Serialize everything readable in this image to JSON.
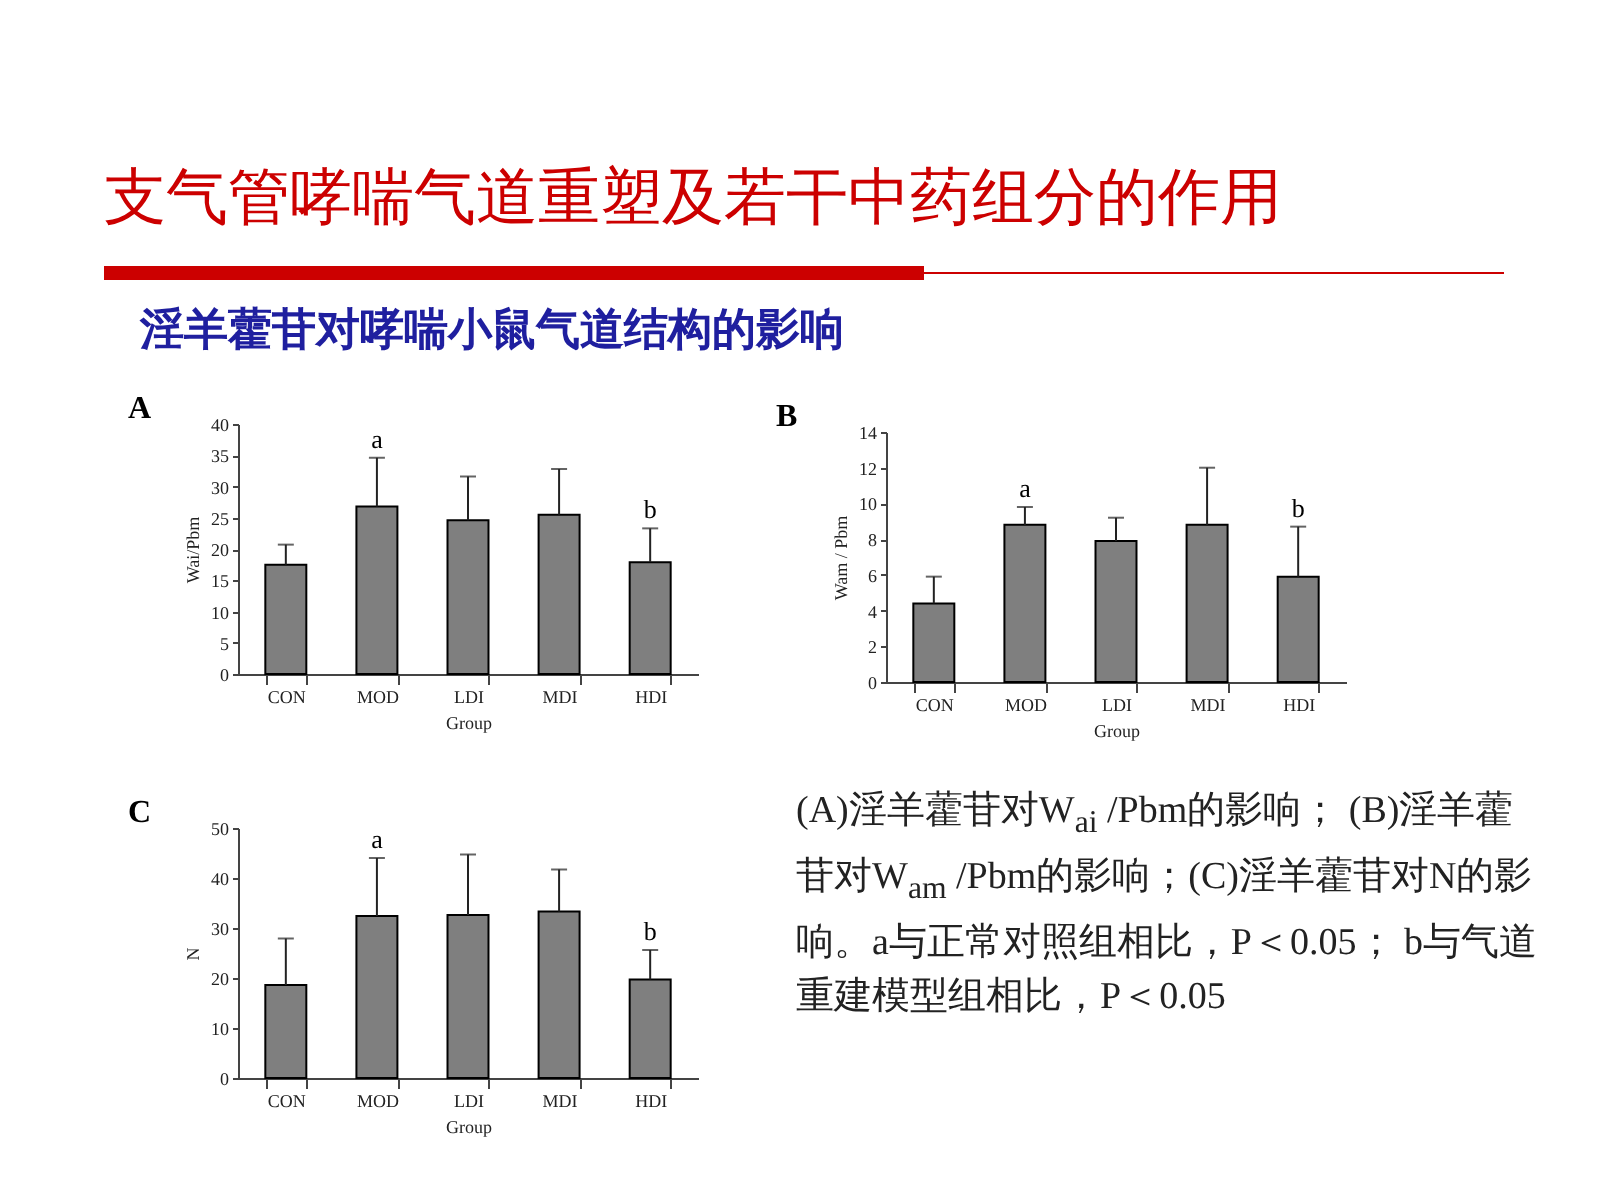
{
  "chart_data": [
    {
      "type": "other",
      "title": "支气管哮喘气道重塑及若干中药组分的作用",
      "subtitle": "淫羊藿苷对哮喘小鼠气道结构的影响"
    },
    {
      "type": "bar",
      "title": "A",
      "xlabel": "Group",
      "ylabel": "Wai/Pbm",
      "categories": [
        "CON",
        "MOD",
        "LDI",
        "MDI",
        "HDI"
      ],
      "color": "#7f7f7f",
      "values": [
        17.5,
        26.8,
        24.6,
        25.5,
        17.9
      ],
      "errors": [
        3.2,
        7.8,
        7.0,
        7.3,
        5.4
      ],
      "ylim": [
        0,
        40
      ],
      "yticks": [
        0,
        5,
        10,
        15,
        20,
        25,
        30,
        35,
        40
      ],
      "annotations": [
        {
          "text": "a",
          "x": "MOD",
          "y": 34.6
        },
        {
          "text": "b",
          "x": "HDI",
          "y": 23.3
        }
      ]
    },
    {
      "type": "bar",
      "title": "B",
      "xlabel": "Group",
      "ylabel": "Wam / Pbm",
      "categories": [
        "CON",
        "MOD",
        "LDI",
        "MDI",
        "HDI"
      ],
      "color": "#7f7f7f",
      "values": [
        4.4,
        8.8,
        7.9,
        8.8,
        5.9
      ],
      "errors": [
        1.5,
        1.0,
        1.3,
        3.2,
        2.8
      ],
      "ylim": [
        0,
        14
      ],
      "yticks": [
        0,
        2,
        4,
        6,
        8,
        10,
        12,
        14
      ],
      "annotations": [
        {
          "text": "a",
          "x": "MOD",
          "y": 9.8
        },
        {
          "text": "b",
          "x": "HDI",
          "y": 8.7
        }
      ]
    },
    {
      "type": "bar",
      "title": "C",
      "xlabel": "Group",
      "ylabel": "N",
      "categories": [
        "CON",
        "MOD",
        "LDI",
        "MDI",
        "HDI"
      ],
      "color": "#7f7f7f",
      "values": [
        18.6,
        32.4,
        32.6,
        33.3,
        19.7
      ],
      "errors": [
        9.3,
        11.6,
        12.1,
        8.4,
        5.9
      ],
      "ylim": [
        0,
        50
      ],
      "yticks": [
        0,
        10,
        20,
        30,
        40,
        50
      ],
      "annotations": [
        {
          "text": "a",
          "x": "MOD",
          "y": 44.0
        },
        {
          "text": "b",
          "x": "HDI",
          "y": 25.6
        }
      ]
    },
    {
      "type": "other",
      "annotations": [
        "(A)淫羊藿苷对W$_{ai}$ /Pbm的影响； (B)淫羊藿苷对W$_{am}$ /Pbm的影响；(C)淫羊藿苷对N的影响。a与正常对照组相比，P＜0.05； b与气道重建模型组相比，P＜0.05"
      ]
    }
  ]
}
